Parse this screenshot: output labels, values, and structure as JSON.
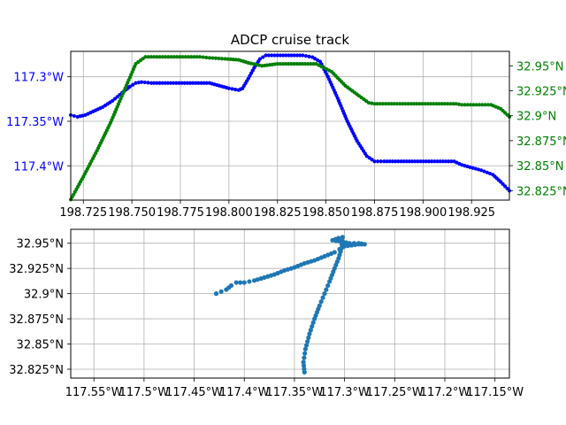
{
  "chart_data": [
    {
      "type": "scatter",
      "title": "ADCP cruise track",
      "grid": true,
      "x_ticks": [
        "198.725",
        "198.750",
        "198.775",
        "198.800",
        "198.825",
        "198.850",
        "198.875",
        "198.900",
        "198.925"
      ],
      "x_tick_values": [
        198.725,
        198.75,
        198.775,
        198.8,
        198.825,
        198.85,
        198.875,
        198.9,
        198.925
      ],
      "xlim": [
        198.7185,
        198.9445
      ],
      "left_axis": {
        "color": "#0000ff",
        "ylim": [
          -117.4385,
          -117.2715
        ],
        "ticks": [
          "117.3°W",
          "117.35°W",
          "117.4°W"
        ],
        "tick_values": [
          -117.3,
          -117.35,
          -117.4
        ]
      },
      "right_axis": {
        "color": "#008000",
        "ylim": [
          32.8155,
          32.9645
        ],
        "ticks": [
          "32.825°N",
          "32.85°N",
          "32.875°N",
          "32.9°N",
          "32.925°N",
          "32.95°N"
        ],
        "tick_values": [
          32.825,
          32.85,
          32.875,
          32.9,
          32.925,
          32.95
        ]
      },
      "series": [
        {
          "axis": "left",
          "color": "#0000ff",
          "points": [
            [
              198.7185,
              -117.343
            ],
            [
              198.722,
              -117.345
            ],
            [
              198.726,
              -117.343
            ],
            [
              198.73,
              -117.339
            ],
            [
              198.735,
              -117.334
            ],
            [
              198.74,
              -117.327
            ],
            [
              198.745,
              -117.318
            ],
            [
              198.749,
              -117.311
            ],
            [
              198.752,
              -117.307
            ],
            [
              198.755,
              -117.306
            ],
            [
              198.76,
              -117.307
            ],
            [
              198.79,
              -117.307
            ],
            [
              198.795,
              -117.31
            ],
            [
              198.8,
              -117.313
            ],
            [
              198.805,
              -117.315
            ],
            [
              198.807,
              -117.313
            ],
            [
              198.81,
              -117.302
            ],
            [
              198.813,
              -117.29
            ],
            [
              198.816,
              -117.28
            ],
            [
              198.819,
              -117.276
            ],
            [
              198.825,
              -117.276
            ],
            [
              198.838,
              -117.276
            ],
            [
              198.843,
              -117.278
            ],
            [
              198.847,
              -117.283
            ],
            [
              198.851,
              -117.3
            ],
            [
              198.856,
              -117.324
            ],
            [
              198.861,
              -117.35
            ],
            [
              198.866,
              -117.372
            ],
            [
              198.871,
              -117.389
            ],
            [
              198.875,
              -117.395
            ],
            [
              198.88,
              -117.395
            ],
            [
              198.916,
              -117.395
            ],
            [
              198.92,
              -117.399
            ],
            [
              198.93,
              -117.405
            ],
            [
              198.936,
              -117.41
            ],
            [
              198.94,
              -117.418
            ],
            [
              198.9445,
              -117.428
            ]
          ]
        },
        {
          "axis": "right",
          "color": "#008000",
          "points": [
            [
              198.7185,
              32.816
            ],
            [
              198.725,
              32.839
            ],
            [
              198.732,
              32.865
            ],
            [
              198.739,
              32.893
            ],
            [
              198.746,
              32.925
            ],
            [
              198.752,
              32.952
            ],
            [
              198.757,
              32.959
            ],
            [
              198.785,
              32.959
            ],
            [
              198.79,
              32.958
            ],
            [
              198.798,
              32.957
            ],
            [
              198.805,
              32.956
            ],
            [
              198.81,
              32.953
            ],
            [
              198.817,
              32.95
            ],
            [
              198.825,
              32.952
            ],
            [
              198.845,
              32.952
            ],
            [
              198.853,
              32.944
            ],
            [
              198.86,
              32.93
            ],
            [
              198.867,
              32.92
            ],
            [
              198.872,
              32.913
            ],
            [
              198.875,
              32.912
            ],
            [
              198.917,
              32.912
            ],
            [
              198.92,
              32.911
            ],
            [
              198.935,
              32.911
            ],
            [
              198.94,
              32.907
            ],
            [
              198.9445,
              32.899
            ]
          ]
        }
      ]
    },
    {
      "type": "scatter",
      "title": "",
      "grid": true,
      "color": "#1f77b4",
      "xlim": [
        -117.5731,
        -117.1356
      ],
      "ylim": [
        32.8162,
        32.9638
      ],
      "x_ticks": [
        "117.55°W",
        "117.5°W",
        "117.45°W",
        "117.4°W",
        "117.35°W",
        "117.3°W",
        "117.25°W",
        "117.2°W",
        "117.15°W"
      ],
      "x_tick_values": [
        -117.55,
        -117.5,
        -117.45,
        -117.4,
        -117.35,
        -117.3,
        -117.25,
        -117.2,
        -117.15
      ],
      "y_ticks": [
        "32.825°N",
        "32.85°N",
        "32.875°N",
        "32.9°N",
        "32.925°N",
        "32.95°N"
      ],
      "y_tick_values": [
        32.825,
        32.85,
        32.875,
        32.9,
        32.925,
        32.95
      ],
      "track": [
        [
          -117.428,
          32.9
        ],
        [
          -117.423,
          32.902
        ],
        [
          -117.418,
          32.904
        ],
        [
          -117.413,
          32.908
        ],
        [
          -117.408,
          32.911
        ],
        [
          -117.4,
          32.911
        ],
        [
          -117.395,
          32.912
        ],
        [
          -117.39,
          32.913
        ],
        [
          -117.38,
          32.916
        ],
        [
          -117.37,
          32.919
        ],
        [
          -117.36,
          32.923
        ],
        [
          -117.35,
          32.926
        ],
        [
          -117.34,
          32.93
        ],
        [
          -117.33,
          32.933
        ],
        [
          -117.32,
          32.937
        ],
        [
          -117.31,
          32.941
        ],
        [
          -117.305,
          32.944
        ],
        [
          -117.3,
          32.947
        ],
        [
          -117.293,
          32.948
        ],
        [
          -117.286,
          32.949
        ],
        [
          -117.28,
          32.949
        ],
        [
          -117.286,
          32.95
        ],
        [
          -117.295,
          32.95
        ],
        [
          -117.305,
          32.952
        ],
        [
          -117.312,
          32.953
        ],
        [
          -117.306,
          32.955
        ],
        [
          -117.302,
          32.956
        ],
        [
          -117.303,
          32.945
        ],
        [
          -117.306,
          32.935
        ],
        [
          -117.31,
          32.925
        ],
        [
          -117.315,
          32.912
        ],
        [
          -117.32,
          32.9
        ],
        [
          -117.325,
          32.888
        ],
        [
          -117.33,
          32.875
        ],
        [
          -117.335,
          32.86
        ],
        [
          -117.339,
          32.845
        ],
        [
          -117.341,
          32.832
        ],
        [
          -117.34,
          32.822
        ]
      ]
    }
  ]
}
